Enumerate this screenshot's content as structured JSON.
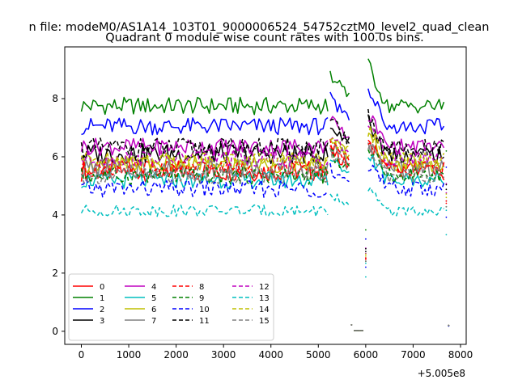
{
  "chart_data": {
    "type": "line",
    "suptitle": "n file: modeM0/AS1A14_103T01_9000006524_54752cztM0_level2_quad_clean",
    "title": "Quadrant 0 module wise count rates with 100.0s bins.",
    "xlabel": "",
    "ylabel": "",
    "x_offset_label": "+5.005e8",
    "xlim": [
      -350,
      8120
    ],
    "ylim": [
      -0.45,
      9.78
    ],
    "xticks": [
      0,
      1000,
      2000,
      3000,
      4000,
      5000,
      6000,
      7000,
      8000
    ],
    "xtick_labels": [
      "0",
      "1000",
      "2000",
      "3000",
      "4000",
      "5000",
      "6000",
      "7000",
      "8000"
    ],
    "yticks": [
      0,
      2,
      4,
      6,
      8
    ],
    "ytick_labels": [
      "0",
      "2",
      "4",
      "6",
      "8"
    ],
    "grid": false,
    "legend_position": "lower-left",
    "legend_columns": 4,
    "segments": [
      {
        "from": 0,
        "to": 5200
      },
      {
        "from": 5250,
        "to": 5650
      },
      {
        "from": 5700,
        "to": 5700,
        "point": true
      },
      {
        "from": 5750,
        "to": 5950
      },
      {
        "from": 6000,
        "to": 6000,
        "point": true
      },
      {
        "from": 6050,
        "to": 7650
      },
      {
        "from": 7700,
        "to": 7700,
        "point": true
      },
      {
        "from": 7750,
        "to": 7750,
        "point": true
      }
    ],
    "series": [
      {
        "name": "0",
        "color": "#ff0000",
        "dash": "solid",
        "base": 5.5,
        "amp": 0.35,
        "end": 0.18
      },
      {
        "name": "1",
        "color": "#008000",
        "dash": "solid",
        "base": 7.75,
        "amp": 0.3,
        "end": 0.2
      },
      {
        "name": "2",
        "color": "#0000ff",
        "dash": "solid",
        "base": 7.05,
        "amp": 0.3,
        "end": 0.2
      },
      {
        "name": "3",
        "color": "#000000",
        "dash": "solid",
        "base": 6.1,
        "amp": 0.35,
        "end": 0.2
      },
      {
        "name": "4",
        "color": "#bf00bf",
        "dash": "solid",
        "base": 6.35,
        "amp": 0.3,
        "end": 0.2
      },
      {
        "name": "5",
        "color": "#00bfbf",
        "dash": "solid",
        "base": 5.2,
        "amp": 0.3,
        "end": 0.18
      },
      {
        "name": "6",
        "color": "#bfbf00",
        "dash": "solid",
        "base": 5.75,
        "amp": 0.3,
        "end": 0.2
      },
      {
        "name": "7",
        "color": "#808080",
        "dash": "solid",
        "base": 5.6,
        "amp": 0.35,
        "end": 0.2
      },
      {
        "name": "8",
        "color": "#ff0000",
        "dash": "dashed",
        "base": 5.6,
        "amp": 0.3,
        "end": 0.2
      },
      {
        "name": "9",
        "color": "#008000",
        "dash": "dashed",
        "base": 5.35,
        "amp": 0.3,
        "end": 0.2
      },
      {
        "name": "10",
        "color": "#0000ff",
        "dash": "dashed",
        "base": 4.9,
        "amp": 0.3,
        "end": 0.18
      },
      {
        "name": "11",
        "color": "#000000",
        "dash": "dashed",
        "base": 6.3,
        "amp": 0.35,
        "end": 0.2
      },
      {
        "name": "12",
        "color": "#bf00bf",
        "dash": "dashed",
        "base": 5.95,
        "amp": 0.3,
        "end": 0.2
      },
      {
        "name": "13",
        "color": "#00bfbf",
        "dash": "dashed",
        "base": 4.15,
        "amp": 0.2,
        "end": 0.2
      },
      {
        "name": "14",
        "color": "#bfbf00",
        "dash": "dashed",
        "base": 5.9,
        "amp": 0.3,
        "end": 0.2
      },
      {
        "name": "15",
        "color": "#808080",
        "dash": "dashed",
        "base": 5.35,
        "amp": 0.3,
        "end": 0.2
      }
    ]
  }
}
